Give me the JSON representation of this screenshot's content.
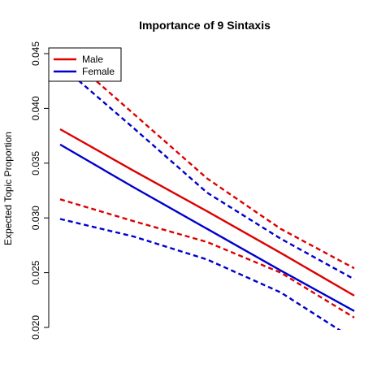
{
  "chart_data": {
    "type": "line",
    "title": "Importance of 9 Sintaxis",
    "ylabel": "Expected Topic Proportion",
    "xlabel": "",
    "xlim": [
      0,
      1
    ],
    "ylim": [
      0.02,
      0.045
    ],
    "yticks": [
      "0.020",
      "0.025",
      "0.030",
      "0.035",
      "0.040",
      "0.045"
    ],
    "legend": {
      "placement": "top-left"
    },
    "series": [
      {
        "name": "Male",
        "color": "#DD0000",
        "x": [
          0,
          0.25,
          0.5,
          0.75,
          1
        ],
        "estimate": [
          0.0381,
          0.0343,
          0.0306,
          0.0268,
          0.0229
        ],
        "upper": [
          0.0454,
          0.0395,
          0.0336,
          0.029,
          0.0254
        ],
        "lower": [
          0.0317,
          0.0297,
          0.0278,
          0.025,
          0.0209
        ]
      },
      {
        "name": "Female",
        "color": "#0000CC",
        "x": [
          0,
          0.25,
          0.5,
          0.75,
          1
        ],
        "estimate": [
          0.0367,
          0.0328,
          0.029,
          0.0252,
          0.0215
        ],
        "upper": [
          0.044,
          0.0382,
          0.0323,
          0.0281,
          0.0244
        ],
        "lower": [
          0.0299,
          0.0283,
          0.0262,
          0.0232,
          0.0189
        ]
      }
    ]
  }
}
